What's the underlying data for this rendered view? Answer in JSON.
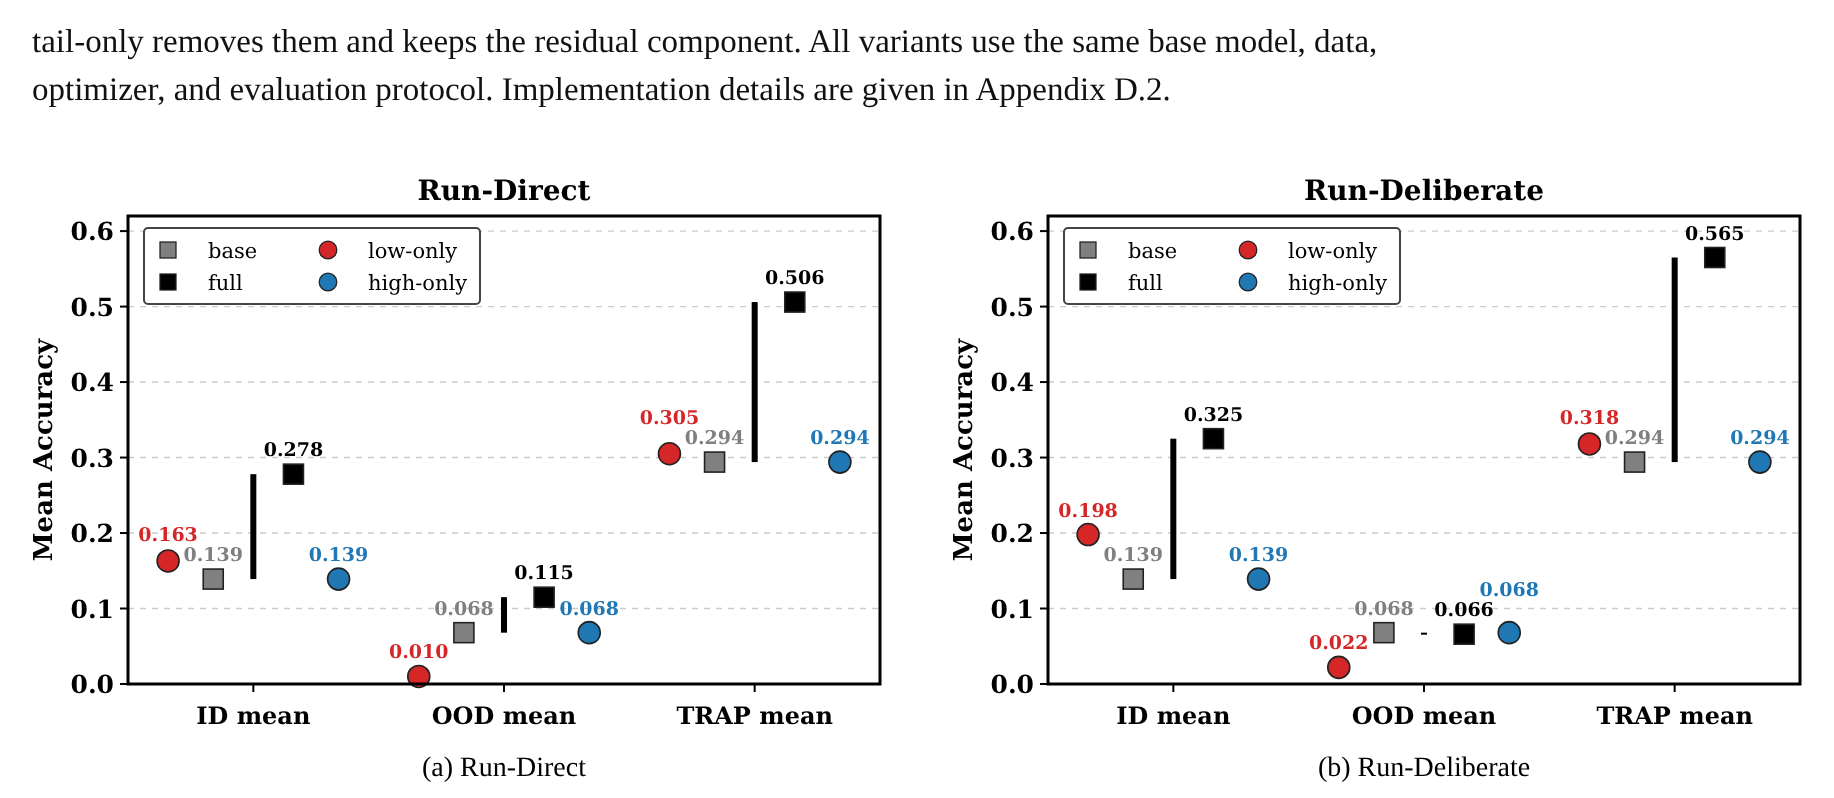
{
  "chart_data": [
    {
      "type": "scatter",
      "title": "Run-Direct",
      "ylabel": "Mean Accuracy",
      "categories": [
        "ID mean",
        "OOD mean",
        "TRAP mean"
      ],
      "ylim": [
        0,
        0.62
      ],
      "yticks": [
        {
          "value": 0,
          "label": "0.0"
        },
        {
          "value": 0.1,
          "label": "0.1"
        },
        {
          "value": 0.2,
          "label": "0.2"
        },
        {
          "value": 0.3,
          "label": "0.3"
        },
        {
          "value": 0.4,
          "label": "0.4"
        },
        {
          "value": 0.5,
          "label": "0.5"
        },
        {
          "value": 0.6,
          "label": "0.6"
        }
      ],
      "grid": "y",
      "legend": "top left",
      "annotations": [
        "tail-only removes them and keeps the residual component. All variants use the same base model, data,",
        "optimizer, and evaluation protocol. Implementation details are given in Appendix D.2.",
        "(a) Run-Direct"
      ],
      "series": [
        {
          "type": "bar",
          "color": "#000000",
          "x": [
            "ID mean",
            "OOD mean",
            "TRAP mean"
          ],
          "base": [
            0.139,
            0.068,
            0.294
          ],
          "values": [
            0.139,
            0.047,
            0.212
          ]
        },
        {
          "name": "base",
          "color": "#808080",
          "marker": "square",
          "x": [
            "ID mean",
            "OOD mean",
            "TRAP mean"
          ],
          "values": [
            0.139,
            0.068,
            0.294
          ],
          "value_labels": [
            "0.139",
            "0.068",
            "0.294"
          ]
        },
        {
          "name": "full",
          "color": "#000000",
          "marker": "square",
          "x": [
            "ID mean",
            "OOD mean",
            "TRAP mean"
          ],
          "values": [
            0.278,
            0.115,
            0.506
          ],
          "value_labels": [
            "0.278",
            "0.115",
            "0.506"
          ]
        },
        {
          "name": "low-only",
          "color": "#d62728",
          "marker": "circle",
          "x": [
            "ID mean",
            "OOD mean",
            "TRAP mean"
          ],
          "values": [
            0.163,
            0.01,
            0.305
          ],
          "value_labels": [
            "0.163",
            "0.010",
            "0.305"
          ]
        },
        {
          "name": "high-only",
          "color": "#1f77b4",
          "marker": "circle",
          "x": [
            "ID mean",
            "OOD mean",
            "TRAP mean"
          ],
          "values": [
            0.139,
            0.068,
            0.294
          ],
          "value_labels": [
            "0.139",
            "0.068",
            "0.294"
          ]
        }
      ]
    },
    {
      "type": "scatter",
      "title": "Run-Deliberate",
      "ylabel": "Mean Accuracy",
      "categories": [
        "ID mean",
        "OOD mean",
        "TRAP mean"
      ],
      "ylim": [
        0,
        0.62
      ],
      "yticks": [
        {
          "value": 0,
          "label": "0.0"
        },
        {
          "value": 0.1,
          "label": "0.1"
        },
        {
          "value": 0.2,
          "label": "0.2"
        },
        {
          "value": 0.3,
          "label": "0.3"
        },
        {
          "value": 0.4,
          "label": "0.4"
        },
        {
          "value": 0.5,
          "label": "0.5"
        },
        {
          "value": 0.6,
          "label": "0.6"
        }
      ],
      "grid": "y",
      "legend": "top left",
      "annotations": [
        "(b) Run-Deliberate"
      ],
      "series": [
        {
          "type": "bar",
          "color": "#000000",
          "x": [
            "ID mean",
            "OOD mean",
            "TRAP mean"
          ],
          "base": [
            0.139,
            0.068,
            0.294
          ],
          "values": [
            0.186,
            -0.002,
            0.271
          ]
        },
        {
          "name": "base",
          "color": "#808080",
          "marker": "square",
          "x": [
            "ID mean",
            "OOD mean",
            "TRAP mean"
          ],
          "values": [
            0.139,
            0.068,
            0.294
          ],
          "value_labels": [
            "0.139",
            "0.068",
            "0.294"
          ]
        },
        {
          "name": "full",
          "color": "#000000",
          "marker": "square",
          "x": [
            "ID mean",
            "OOD mean",
            "TRAP mean"
          ],
          "values": [
            0.325,
            0.066,
            0.565
          ],
          "value_labels": [
            "0.325",
            "0.066",
            "0.565"
          ]
        },
        {
          "name": "low-only",
          "color": "#d62728",
          "marker": "circle",
          "x": [
            "ID mean",
            "OOD mean",
            "TRAP mean"
          ],
          "values": [
            0.198,
            0.022,
            0.318
          ],
          "value_labels": [
            "0.198",
            "0.022",
            "0.318"
          ]
        },
        {
          "name": "high-only",
          "color": "#1f77b4",
          "marker": "circle",
          "x": [
            "ID mean",
            "OOD mean",
            "TRAP mean"
          ],
          "values": [
            0.139,
            0.068,
            0.294
          ],
          "value_labels": [
            "0.139",
            "0.068",
            "0.294"
          ]
        }
      ]
    }
  ]
}
